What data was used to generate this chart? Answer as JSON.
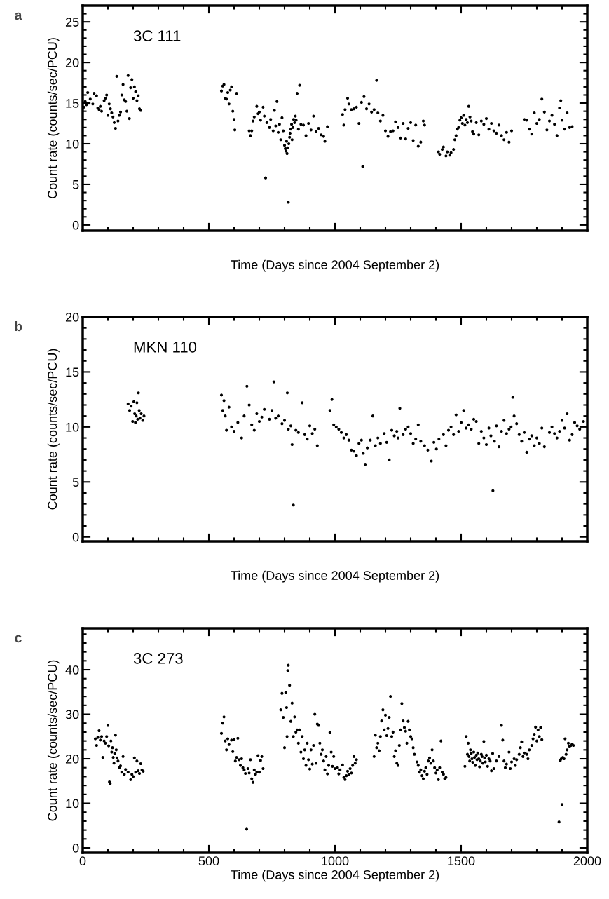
{
  "chart_data": [
    {
      "type": "scatter",
      "color": "#000000",
      "marker": "circle",
      "xlabel": "Time (Days since 2004 September 2)",
      "ylabel": "Count rate (counts/sec/PCU)",
      "annotations": [
        "a",
        "3C 111"
      ],
      "xlim": [
        0,
        2000
      ],
      "ylim": [
        -0.7,
        27
      ],
      "xticks": [
        0,
        500,
        1000,
        1500,
        2000
      ],
      "yticks": [
        0,
        5,
        10,
        15,
        20,
        25
      ],
      "tick_labels": "y",
      "x": [
        5,
        10,
        15,
        20,
        25,
        30,
        40,
        45,
        55,
        60,
        65,
        70,
        75,
        85,
        90,
        95,
        100,
        105,
        110,
        115,
        120,
        125,
        130,
        135,
        140,
        145,
        150,
        155,
        160,
        165,
        170,
        175,
        180,
        185,
        190,
        195,
        200,
        205,
        210,
        215,
        220,
        225,
        230,
        550,
        555,
        560,
        565,
        570,
        575,
        580,
        585,
        590,
        595,
        600,
        603,
        610,
        660,
        665,
        670,
        675,
        680,
        690,
        695,
        700,
        705,
        715,
        720,
        725,
        730,
        740,
        745,
        755,
        760,
        765,
        770,
        775,
        780,
        785,
        790,
        795,
        800,
        803,
        806,
        808,
        810,
        812,
        815,
        817,
        820,
        822,
        825,
        828,
        830,
        833,
        836,
        840,
        843,
        846,
        850,
        855,
        860,
        865,
        875,
        885,
        895,
        905,
        915,
        925,
        935,
        945,
        955,
        960,
        970,
        1030,
        1035,
        1040,
        1050,
        1055,
        1065,
        1075,
        1085,
        1095,
        1105,
        1110,
        1115,
        1125,
        1135,
        1145,
        1155,
        1165,
        1170,
        1180,
        1190,
        1200,
        1210,
        1220,
        1230,
        1240,
        1250,
        1260,
        1270,
        1280,
        1290,
        1300,
        1310,
        1320,
        1330,
        1340,
        1350,
        1355,
        1410,
        1415,
        1425,
        1430,
        1440,
        1445,
        1455,
        1460,
        1470,
        1475,
        1480,
        1485,
        1490,
        1495,
        1500,
        1505,
        1510,
        1515,
        1520,
        1525,
        1530,
        1535,
        1540,
        1545,
        1550,
        1560,
        1570,
        1580,
        1590,
        1600,
        1610,
        1620,
        1630,
        1640,
        1650,
        1660,
        1670,
        1680,
        1690,
        1700,
        1750,
        1760,
        1770,
        1780,
        1790,
        1800,
        1810,
        1820,
        1830,
        1840,
        1850,
        1860,
        1870,
        1880,
        1890,
        1895,
        1900,
        1910,
        1920,
        1930,
        1940
      ],
      "values": [
        14.5,
        15.2,
        14.8,
        16.3,
        15.0,
        15.5,
        14.9,
        16.2,
        15.9,
        14.4,
        14.2,
        14.6,
        14.0,
        15.3,
        15.6,
        16.0,
        13.5,
        14.9,
        14.3,
        13.8,
        13.3,
        12.6,
        11.9,
        18.3,
        12.8,
        13.5,
        13.9,
        16.0,
        17.3,
        15.4,
        15.2,
        14.0,
        18.4,
        13.1,
        16.9,
        17.9,
        15.6,
        17.0,
        16.4,
        15.3,
        15.9,
        14.3,
        14.1,
        16.5,
        17.1,
        17.3,
        15.6,
        15.5,
        16.3,
        14.9,
        16.6,
        17.0,
        14.0,
        13.0,
        11.7,
        16.2,
        11.6,
        11.0,
        11.6,
        12.8,
        13.3,
        14.6,
        13.7,
        13.9,
        12.9,
        14.5,
        13.4,
        5.8,
        12.6,
        12.0,
        13.0,
        11.6,
        14.1,
        12.2,
        15.2,
        11.4,
        12.4,
        10.5,
        13.2,
        11.6,
        9.8,
        9.4,
        9.1,
        10.3,
        8.8,
        9.5,
        2.8,
        10.0,
        10.8,
        11.3,
        11.8,
        12.4,
        10.5,
        12.0,
        13.0,
        12.6,
        13.4,
        12.9,
        16.2,
        11.8,
        17.2,
        12.4,
        12.3,
        11.0,
        12.5,
        11.7,
        13.4,
        11.5,
        11.9,
        11.1,
        10.9,
        10.3,
        12.1,
        13.6,
        12.3,
        14.2,
        15.6,
        14.9,
        14.2,
        14.3,
        14.5,
        12.5,
        15.1,
        7.2,
        15.8,
        14.3,
        14.9,
        13.9,
        14.2,
        17.8,
        13.8,
        12.8,
        13.5,
        11.6,
        10.9,
        11.5,
        11.6,
        12.7,
        12.0,
        10.7,
        12.5,
        10.6,
        11.9,
        12.6,
        10.4,
        12.3,
        9.7,
        10.2,
        12.8,
        12.3,
        9.0,
        8.7,
        9.3,
        9.6,
        8.5,
        9.0,
        8.6,
        8.9,
        9.3,
        10.5,
        11.0,
        11.8,
        12.0,
        12.9,
        13.2,
        12.5,
        13.5,
        12.3,
        13.0,
        12.6,
        14.6,
        13.3,
        12.8,
        11.5,
        11.2,
        12.6,
        11.1,
        12.8,
        12.4,
        13.1,
        11.8,
        12.5,
        11.6,
        11.3,
        12.3,
        11.0,
        10.5,
        11.4,
        10.2,
        11.6,
        13.0,
        12.9,
        11.8,
        11.2,
        13.8,
        12.5,
        13.0,
        15.5,
        13.9,
        11.7,
        12.8,
        13.5,
        12.4,
        11.0,
        14.4,
        15.3,
        12.9,
        11.8,
        13.8,
        12.0,
        12.1
      ]
    },
    {
      "type": "scatter",
      "color": "#000000",
      "marker": "circle",
      "xlabel": "Time (Days since 2004 September 2)",
      "ylabel": "Count rate (counts/sec/PCU)",
      "annotations": [
        "b",
        "MKN 110"
      ],
      "xlim": [
        0,
        2000
      ],
      "ylim": [
        -0.4,
        20
      ],
      "xticks": [
        0,
        500,
        1000,
        1500,
        2000
      ],
      "yticks": [
        0,
        5,
        10,
        15,
        20
      ],
      "tick_labels": "y",
      "x": [
        180,
        186,
        192,
        198,
        203,
        206,
        209,
        212,
        215,
        218,
        221,
        224,
        227,
        232,
        238,
        243,
        550,
        555,
        560,
        565,
        570,
        580,
        590,
        600,
        615,
        651,
        630,
        640,
        660,
        670,
        680,
        690,
        700,
        710,
        720,
        740,
        758,
        750,
        765,
        775,
        790,
        811,
        800,
        815,
        825,
        830,
        845,
        835,
        855,
        870,
        880,
        890,
        900,
        910,
        920,
        930,
        980,
        988,
        995,
        1005,
        1015,
        1025,
        1035,
        1045,
        1055,
        1065,
        1075,
        1085,
        1095,
        1105,
        1112,
        1120,
        1128,
        1140,
        1150,
        1160,
        1170,
        1180,
        1195,
        1205,
        1215,
        1225,
        1235,
        1245,
        1250,
        1257,
        1270,
        1280,
        1290,
        1300,
        1310,
        1320,
        1330,
        1340,
        1355,
        1368,
        1382,
        1392,
        1402,
        1412,
        1430,
        1440,
        1450,
        1460,
        1470,
        1480,
        1490,
        1500,
        1510,
        1520,
        1530,
        1540,
        1550,
        1560,
        1570,
        1580,
        1590,
        1600,
        1610,
        1618,
        1626,
        1632,
        1640,
        1650,
        1660,
        1670,
        1680,
        1690,
        1698,
        1705,
        1710,
        1720,
        1730,
        1740,
        1750,
        1760,
        1770,
        1780,
        1790,
        1800,
        1810,
        1820,
        1830,
        1850,
        1860,
        1870,
        1880,
        1890,
        1900,
        1910,
        1920,
        1930,
        1940,
        1950,
        1960,
        1970,
        1985
      ],
      "values": [
        12.1,
        11.5,
        11.9,
        10.5,
        12.3,
        11.2,
        10.4,
        11.0,
        12.2,
        10.7,
        13.1,
        11.5,
        10.8,
        11.2,
        10.6,
        11.0,
        12.9,
        11.5,
        12.4,
        11.0,
        9.7,
        11.8,
        10.0,
        9.6,
        10.4,
        13.7,
        9.0,
        11.0,
        12.0,
        10.2,
        9.7,
        11.2,
        10.5,
        10.9,
        11.6,
        10.7,
        14.1,
        11.5,
        10.8,
        11.0,
        10.3,
        13.1,
        10.6,
        9.8,
        10.1,
        8.4,
        9.7,
        2.9,
        9.5,
        12.2,
        9.3,
        8.9,
        10.1,
        9.4,
        9.8,
        8.3,
        11.5,
        12.5,
        10.2,
        10.0,
        9.8,
        9.5,
        9.0,
        9.3,
        8.8,
        7.9,
        7.8,
        7.4,
        8.5,
        8.8,
        7.6,
        6.6,
        8.1,
        8.8,
        11.0,
        8.3,
        9.0,
        8.5,
        9.4,
        8.6,
        7.0,
        9.7,
        9.2,
        9.6,
        9.0,
        11.7,
        9.3,
        9.8,
        10.0,
        9.4,
        8.5,
        8.9,
        10.2,
        8.7,
        8.3,
        7.9,
        6.9,
        8.6,
        8.0,
        8.9,
        9.3,
        8.3,
        9.7,
        10.0,
        9.3,
        11.1,
        9.6,
        10.4,
        11.5,
        9.9,
        10.2,
        9.8,
        10.7,
        10.5,
        8.5,
        9.6,
        9.0,
        8.4,
        9.9,
        9.2,
        4.2,
        8.7,
        10.1,
        8.2,
        9.6,
        10.6,
        9.4,
        9.8,
        10.0,
        12.7,
        11.0,
        10.3,
        9.3,
        8.7,
        9.5,
        7.7,
        8.9,
        9.2,
        8.3,
        9.0,
        8.5,
        9.9,
        8.2,
        9.5,
        10.0,
        9.4,
        9.0,
        9.6,
        10.6,
        9.9,
        11.2,
        8.8,
        9.3,
        10.4,
        10.1,
        9.8,
        10.5
      ]
    },
    {
      "type": "scatter",
      "color": "#000000",
      "marker": "circle",
      "xlabel": "Time (Days since 2004 September 2)",
      "ylabel": "Count rate (counts/sec/PCU)",
      "annotations": [
        "c",
        "3C 273"
      ],
      "xlim": [
        0,
        2000
      ],
      "ylim": [
        -1.1,
        49.3
      ],
      "xticks": [
        0,
        500,
        1000,
        1500,
        2000
      ],
      "yticks": [
        0,
        10,
        20,
        30,
        40
      ],
      "x": [
        50,
        55,
        60,
        65,
        70,
        75,
        80,
        85,
        90,
        95,
        100,
        103,
        106,
        109,
        112,
        115,
        118,
        121,
        124,
        127,
        130,
        133,
        136,
        140,
        145,
        150,
        155,
        160,
        165,
        170,
        180,
        190,
        195,
        200,
        205,
        210,
        215,
        220,
        225,
        230,
        235,
        240,
        550,
        555,
        560,
        565,
        570,
        575,
        580,
        590,
        595,
        600,
        605,
        610,
        615,
        620,
        625,
        630,
        635,
        640,
        645,
        650,
        655,
        660,
        665,
        670,
        675,
        680,
        685,
        690,
        695,
        700,
        705,
        710,
        715,
        785,
        790,
        795,
        800,
        805,
        808,
        810,
        813,
        815,
        820,
        825,
        830,
        835,
        840,
        845,
        850,
        855,
        860,
        865,
        870,
        875,
        880,
        885,
        890,
        895,
        900,
        905,
        910,
        915,
        920,
        925,
        930,
        935,
        940,
        945,
        950,
        955,
        960,
        965,
        970,
        975,
        980,
        985,
        990,
        995,
        1000,
        1010,
        1015,
        1020,
        1030,
        1035,
        1040,
        1045,
        1050,
        1055,
        1060,
        1065,
        1070,
        1075,
        1080,
        1085,
        1155,
        1160,
        1165,
        1170,
        1175,
        1180,
        1185,
        1190,
        1195,
        1200,
        1205,
        1210,
        1215,
        1220,
        1225,
        1230,
        1235,
        1240,
        1245,
        1250,
        1255,
        1260,
        1265,
        1270,
        1275,
        1280,
        1285,
        1290,
        1295,
        1300,
        1305,
        1310,
        1315,
        1325,
        1330,
        1335,
        1340,
        1345,
        1350,
        1355,
        1360,
        1365,
        1370,
        1375,
        1380,
        1385,
        1390,
        1395,
        1400,
        1405,
        1410,
        1415,
        1420,
        1425,
        1430,
        1435,
        1440,
        1515,
        1520,
        1525,
        1528,
        1531,
        1534,
        1537,
        1540,
        1543,
        1546,
        1550,
        1553,
        1556,
        1560,
        1563,
        1566,
        1570,
        1573,
        1576,
        1580,
        1583,
        1586,
        1590,
        1593,
        1596,
        1600,
        1605,
        1610,
        1615,
        1620,
        1625,
        1630,
        1640,
        1650,
        1660,
        1665,
        1670,
        1675,
        1680,
        1690,
        1695,
        1700,
        1710,
        1715,
        1720,
        1730,
        1735,
        1740,
        1745,
        1750,
        1760,
        1765,
        1770,
        1780,
        1785,
        1790,
        1795,
        1800,
        1805,
        1810,
        1815,
        1820,
        1888,
        1893,
        1897,
        1900,
        1903,
        1908,
        1912,
        1916,
        1920,
        1925,
        1930,
        1935,
        1940,
        1945
      ],
      "values": [
        24.5,
        23.0,
        24.8,
        26.3,
        24.2,
        25.0,
        20.3,
        24.0,
        23.5,
        25.0,
        27.5,
        22.9,
        14.8,
        14.4,
        24.0,
        21.5,
        22.5,
        20.3,
        19.0,
        21.2,
        25.3,
        22.0,
        20.2,
        19.5,
        18.0,
        18.4,
        17.0,
        20.5,
        16.5,
        17.6,
        17.0,
        15.3,
        16.5,
        16.0,
        20.2,
        17.0,
        19.5,
        17.3,
        16.7,
        18.9,
        17.5,
        17.2,
        25.7,
        28.0,
        29.4,
        24.0,
        22.0,
        24.5,
        23.2,
        24.2,
        21.6,
        24.3,
        19.5,
        20.3,
        24.6,
        19.8,
        18.5,
        20.0,
        18.0,
        17.5,
        16.7,
        4.2,
        17.8,
        16.8,
        19.8,
        15.5,
        14.7,
        17.5,
        16.5,
        17.0,
        20.7,
        17.0,
        19.6,
        20.5,
        17.8,
        31.0,
        34.7,
        29.3,
        22.5,
        34.9,
        31.5,
        25.0,
        39.8,
        41.0,
        36.5,
        28.4,
        32.5,
        25.0,
        29.4,
        26.0,
        26.5,
        23.5,
        26.5,
        21.5,
        25.0,
        20.0,
        22.0,
        18.5,
        23.5,
        19.8,
        17.7,
        22.0,
        18.8,
        23.0,
        30.0,
        19.0,
        27.8,
        27.5,
        23.5,
        21.0,
        22.0,
        19.5,
        17.5,
        20.5,
        16.6,
        18.5,
        25.9,
        21.5,
        18.3,
        20.5,
        17.8,
        18.0,
        16.6,
        17.5,
        18.6,
        15.8,
        15.3,
        16.2,
        17.2,
        16.5,
        17.8,
        16.8,
        18.5,
        20.5,
        19.0,
        19.8,
        20.5,
        25.3,
        22.5,
        23.5,
        21.8,
        25.0,
        28.5,
        31.0,
        26.5,
        29.8,
        25.2,
        26.8,
        29.3,
        34.0,
        25.0,
        26.0,
        20.5,
        21.8,
        19.0,
        18.5,
        23.0,
        26.5,
        32.4,
        28.5,
        27.0,
        26.2,
        23.5,
        28.4,
        26.5,
        25.0,
        24.5,
        22.5,
        21.0,
        19.3,
        18.5,
        17.0,
        17.5,
        16.2,
        15.5,
        17.2,
        18.0,
        16.5,
        19.5,
        20.2,
        19.0,
        22.0,
        19.5,
        18.0,
        16.8,
        17.5,
        15.3,
        18.0,
        24.0,
        17.0,
        16.5,
        15.5,
        15.8,
        18.3,
        25.0,
        21.0,
        23.5,
        20.5,
        19.5,
        22.0,
        21.2,
        20.0,
        19.2,
        21.5,
        20.3,
        18.5,
        20.8,
        19.8,
        21.3,
        20.0,
        18.2,
        19.5,
        21.0,
        20.5,
        19.0,
        23.9,
        20.2,
        19.3,
        20.8,
        18.3,
        20.0,
        19.5,
        17.3,
        21.2,
        17.8,
        19.5,
        20.5,
        27.5,
        24.2,
        19.5,
        18.0,
        18.8,
        21.5,
        17.8,
        19.3,
        20.0,
        18.5,
        19.8,
        21.0,
        22.5,
        23.8,
        20.5,
        21.3,
        21.0,
        20.0,
        22.0,
        23.0,
        24.5,
        25.5,
        27.1,
        24.0,
        26.5,
        25.0,
        27.0,
        24.3,
        5.8,
        19.6,
        20.0,
        9.7,
        20.3,
        20.0,
        24.5,
        21.0,
        22.0,
        23.5,
        22.8,
        23.0,
        23.3,
        23.0
      ]
    }
  ]
}
